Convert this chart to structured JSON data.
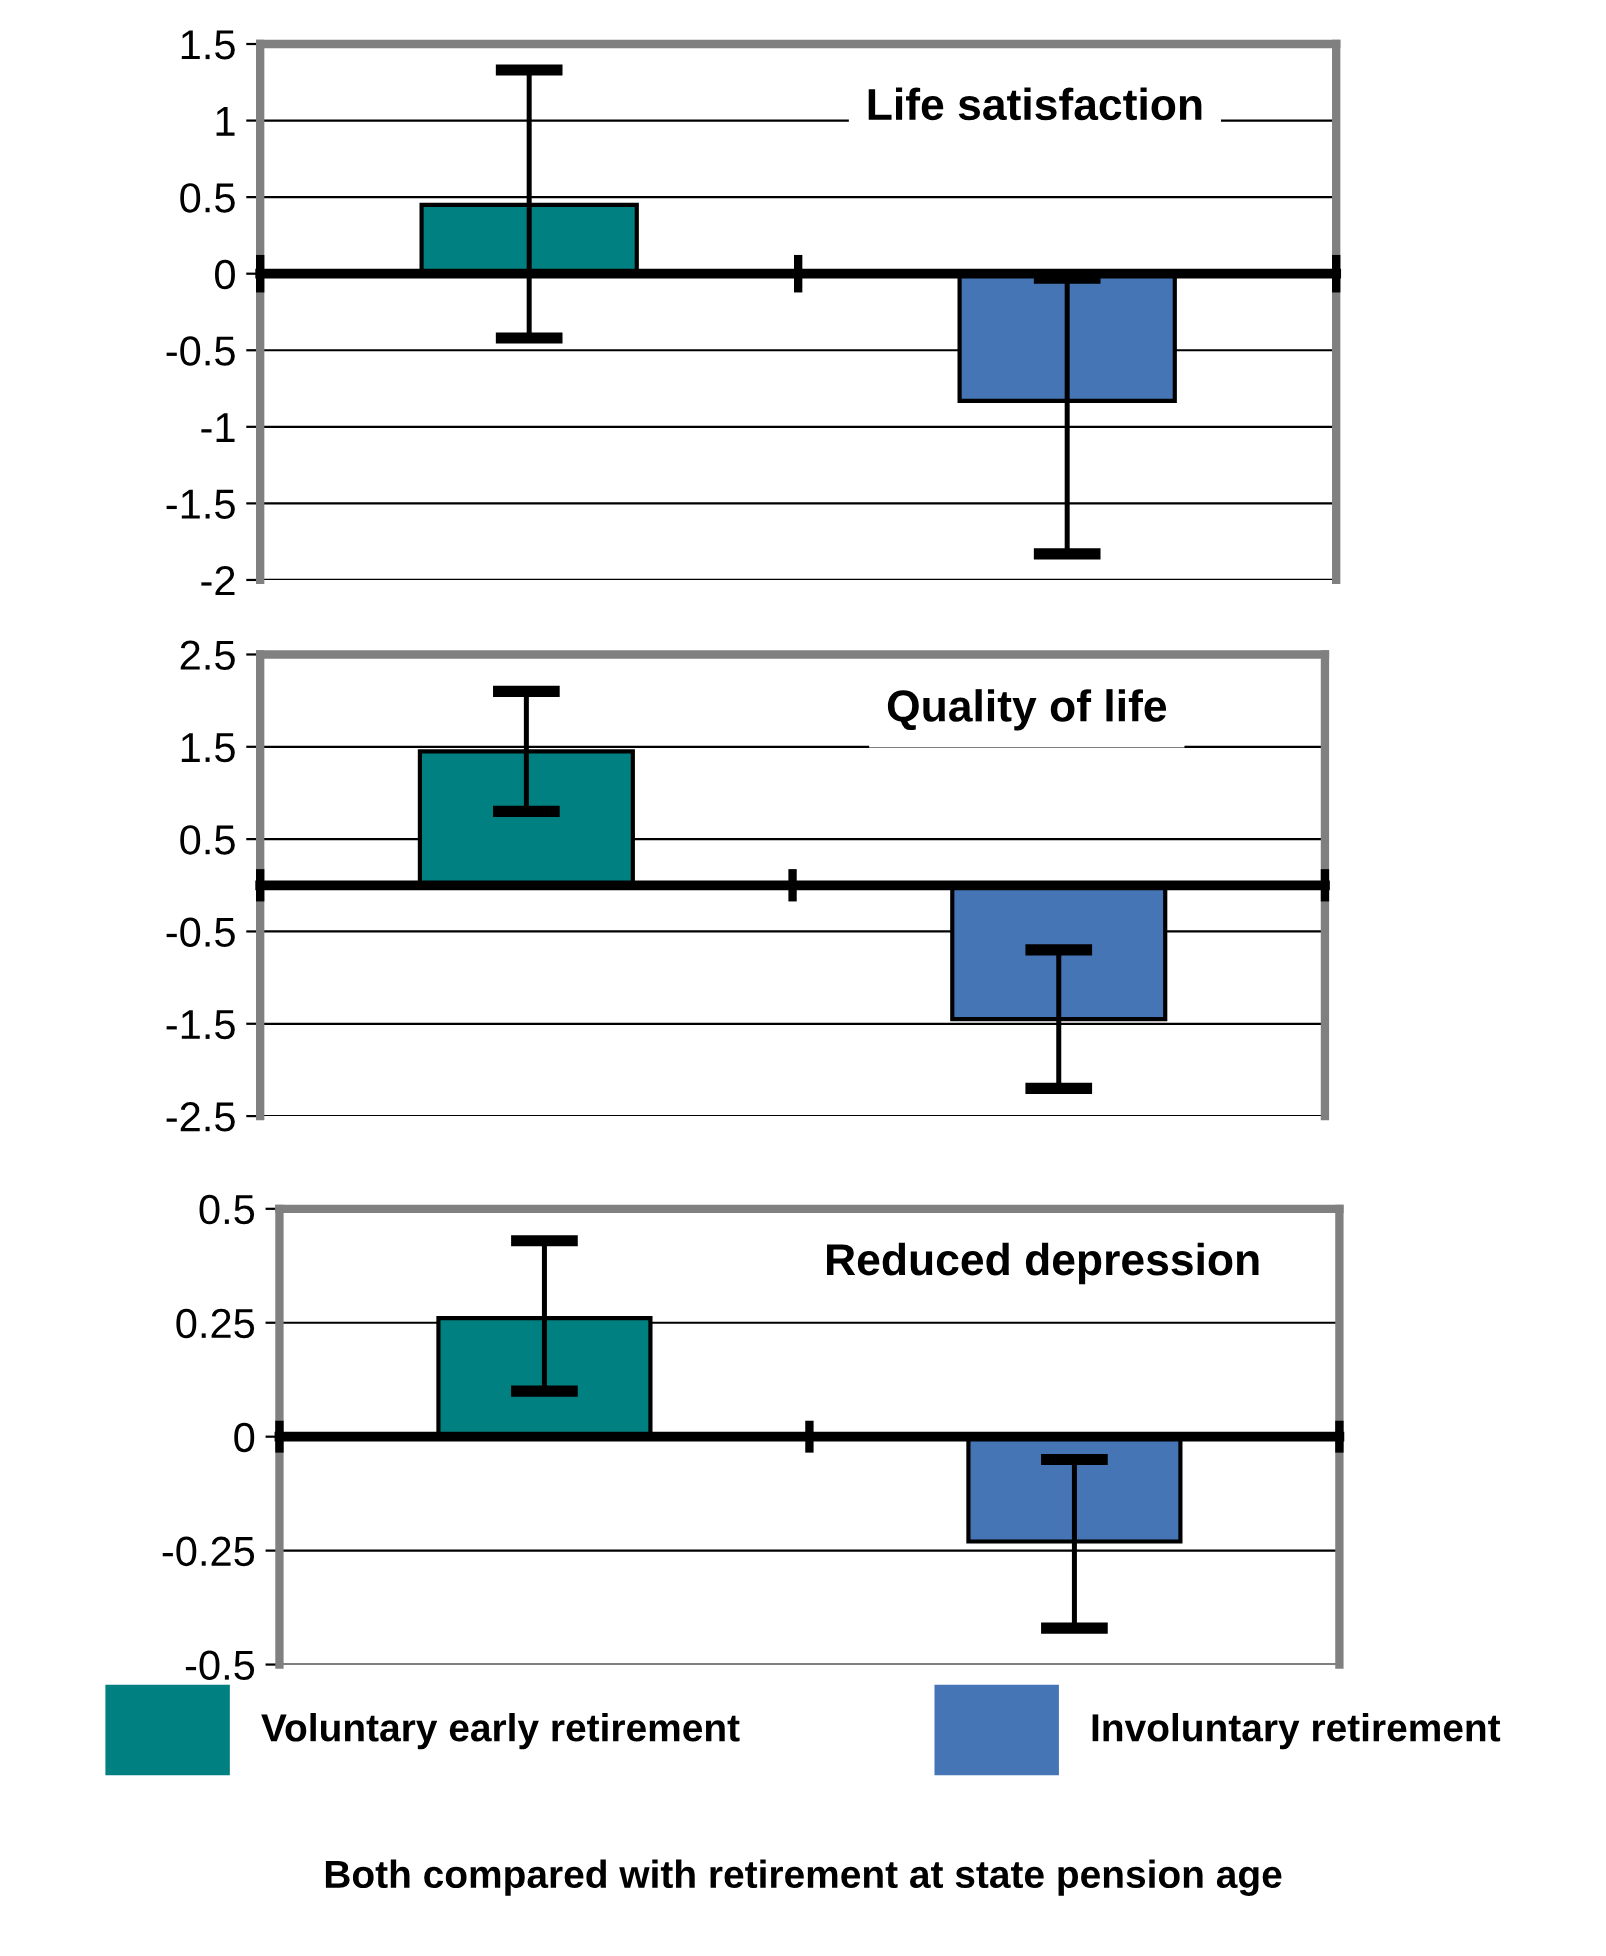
{
  "chart_data": [
    {
      "type": "bar",
      "title": "Life satisfaction",
      "categories": [
        null,
        null
      ],
      "series": [
        {
          "color": "#008080",
          "values": [
            0.45,
            null
          ],
          "errors": [
            [
              -0.42,
              1.33
            ],
            null
          ]
        },
        {
          "color": "#4575b4",
          "values": [
            null,
            -0.83
          ],
          "errors": [
            null,
            [
              -1.83,
              -0.03
            ]
          ]
        }
      ],
      "ylim": [
        -2,
        1.5
      ],
      "yticks": [
        -2,
        -1.5,
        -1,
        -0.5,
        0,
        0.5,
        1,
        1.5
      ],
      "grid": "y",
      "tick_labels": "y"
    },
    {
      "type": "bar",
      "title": "Quality of life",
      "categories": [
        null,
        null
      ],
      "series": [
        {
          "color": "#008080",
          "values": [
            1.45,
            null
          ],
          "errors": [
            [
              0.8,
              2.1
            ],
            null
          ]
        },
        {
          "color": "#4575b4",
          "values": [
            null,
            -1.45
          ],
          "errors": [
            null,
            [
              -2.2,
              -0.7
            ]
          ]
        }
      ],
      "ylim": [
        -2.5,
        2.5
      ],
      "yticks": [
        -2.5,
        -1.5,
        -0.5,
        0.5,
        1.5,
        2.5
      ],
      "grid": "y",
      "tick_labels": "y"
    },
    {
      "type": "bar",
      "title": "Reduced depression",
      "categories": [
        null,
        null
      ],
      "series": [
        {
          "name": "Voluntary early retirement",
          "color": "#008080",
          "values": [
            0.26,
            null
          ],
          "errors": [
            [
              0.1,
              0.43
            ],
            null
          ]
        },
        {
          "name": "Involuntary retirement",
          "color": "#4575b4",
          "values": [
            null,
            -0.23
          ],
          "errors": [
            null,
            [
              -0.42,
              -0.05
            ]
          ]
        }
      ],
      "ylim": [
        -0.5,
        0.5
      ],
      "yticks": [
        -0.5,
        -0.25,
        0,
        0.25,
        0.5
      ],
      "grid": "y",
      "tick_labels": "y",
      "legend": "bottom",
      "annotations": [
        "Both compared with retirement at state pension age"
      ]
    }
  ]
}
